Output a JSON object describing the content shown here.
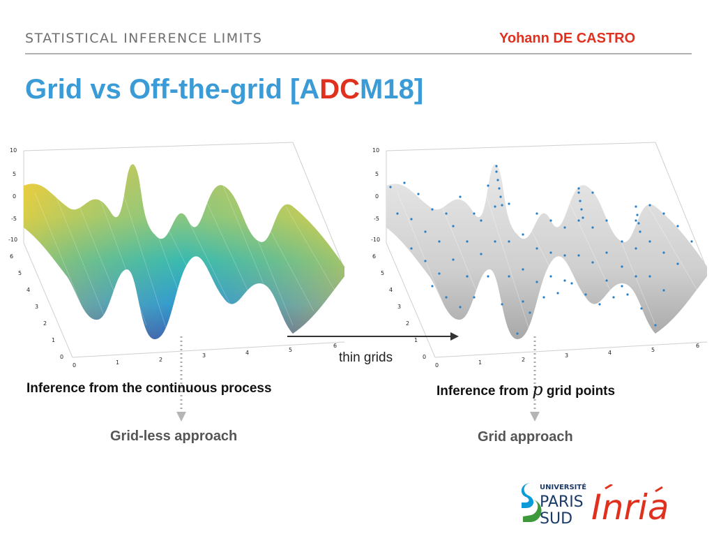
{
  "header": {
    "section": "STATISTICAL INFERENCE LIMITS",
    "author": "Yohann DE CASTRO"
  },
  "title": {
    "part1": "Grid vs Off-the-grid [A",
    "highlight": "DC",
    "part2": "M18]"
  },
  "plots": {
    "left": {
      "z_ticks": [
        "10",
        "5",
        "0",
        "-5",
        "-10"
      ],
      "y_ticks": [
        "6",
        "5",
        "4",
        "3",
        "2",
        "1",
        "0"
      ],
      "x_ticks": [
        "0",
        "1",
        "2",
        "3",
        "4",
        "5",
        "6"
      ],
      "style": "surface-rainbow"
    },
    "right": {
      "z_ticks": [
        "10",
        "5",
        "0",
        "-5",
        "-10"
      ],
      "y_ticks": [
        "6",
        "5",
        "4",
        "3",
        "2",
        "1",
        "0"
      ],
      "x_ticks": [
        "0",
        "1",
        "2",
        "3",
        "4",
        "5",
        "6"
      ],
      "style": "surface-grey-with-grid-points"
    }
  },
  "arrow_label": "thin grids",
  "captions": {
    "left": "Inference from the continuous process",
    "right_before": "Inference from ",
    "right_math": "p",
    "right_after": " grid points"
  },
  "approaches": {
    "left": "Grid-less approach",
    "right": "Grid approach"
  },
  "logos": {
    "university": [
      "UNIVERSITÉ",
      "PARIS",
      "SUD"
    ],
    "inria": "Inria"
  },
  "colors": {
    "title_blue": "#3a9bd6",
    "accent_red": "#e0311f",
    "points_blue": "#2a7fc7"
  }
}
